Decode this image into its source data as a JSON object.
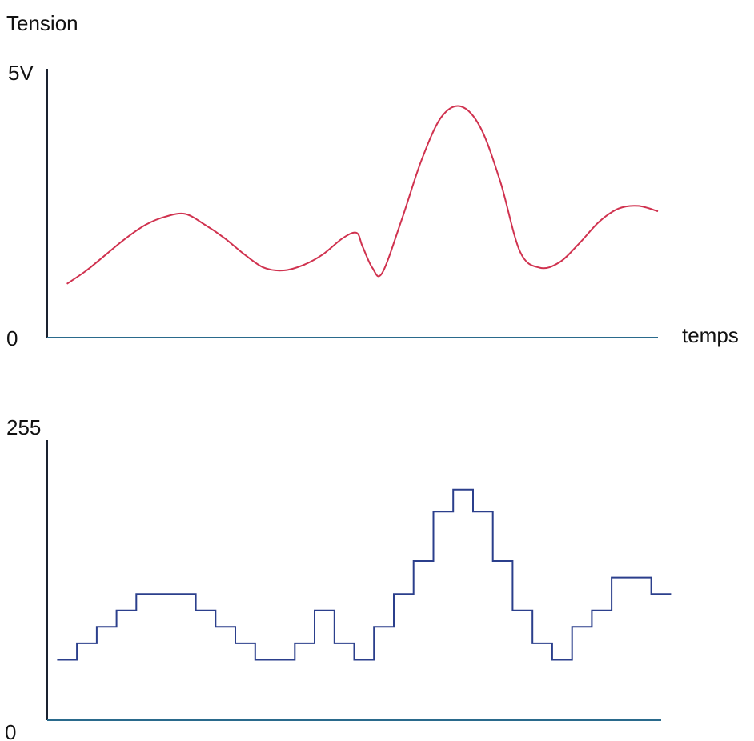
{
  "chart_data": [
    {
      "type": "line",
      "ylabel": "Tension",
      "xlabel": "temps",
      "y_tick_labels": {
        "max": "5V",
        "min": "0"
      },
      "ylim": [
        0,
        5
      ],
      "xlim": [
        0,
        31
      ],
      "grid": false,
      "color": "#d0324f",
      "series": [
        {
          "x": [
            1,
            2,
            3,
            4,
            5,
            6,
            7,
            8,
            9,
            10,
            11,
            12,
            13,
            14,
            15,
            15.7,
            16,
            16.5,
            17,
            18,
            19,
            20,
            21,
            22,
            23,
            24,
            25,
            26,
            27,
            28,
            29,
            30,
            31
          ],
          "values": [
            1.0,
            1.25,
            1.55,
            1.85,
            2.1,
            2.25,
            2.3,
            2.1,
            1.85,
            1.55,
            1.3,
            1.25,
            1.35,
            1.55,
            1.85,
            1.95,
            1.7,
            1.3,
            1.2,
            2.2,
            3.3,
            4.1,
            4.3,
            3.9,
            2.9,
            1.6,
            1.3,
            1.4,
            1.75,
            2.15,
            2.4,
            2.45,
            2.35
          ]
        }
      ]
    },
    {
      "type": "step",
      "y_tick_labels": {
        "max": "255",
        "min": "0"
      },
      "ylim": [
        0,
        255
      ],
      "xlim": [
        0,
        31
      ],
      "grid": false,
      "color": "#2b3f8c",
      "series": [
        {
          "x": [
            1,
            2,
            3,
            4,
            5,
            6,
            7,
            8,
            9,
            10,
            11,
            12,
            13,
            14,
            15,
            16,
            17,
            18,
            19,
            20,
            21,
            22,
            23,
            24,
            25,
            26,
            27,
            28,
            29,
            30,
            31
          ],
          "values": [
            55,
            70,
            85,
            100,
            115,
            115,
            115,
            100,
            85,
            70,
            55,
            55,
            70,
            100,
            70,
            55,
            85,
            115,
            145,
            190,
            210,
            190,
            145,
            100,
            70,
            55,
            85,
            100,
            130,
            130,
            115
          ]
        }
      ]
    }
  ]
}
